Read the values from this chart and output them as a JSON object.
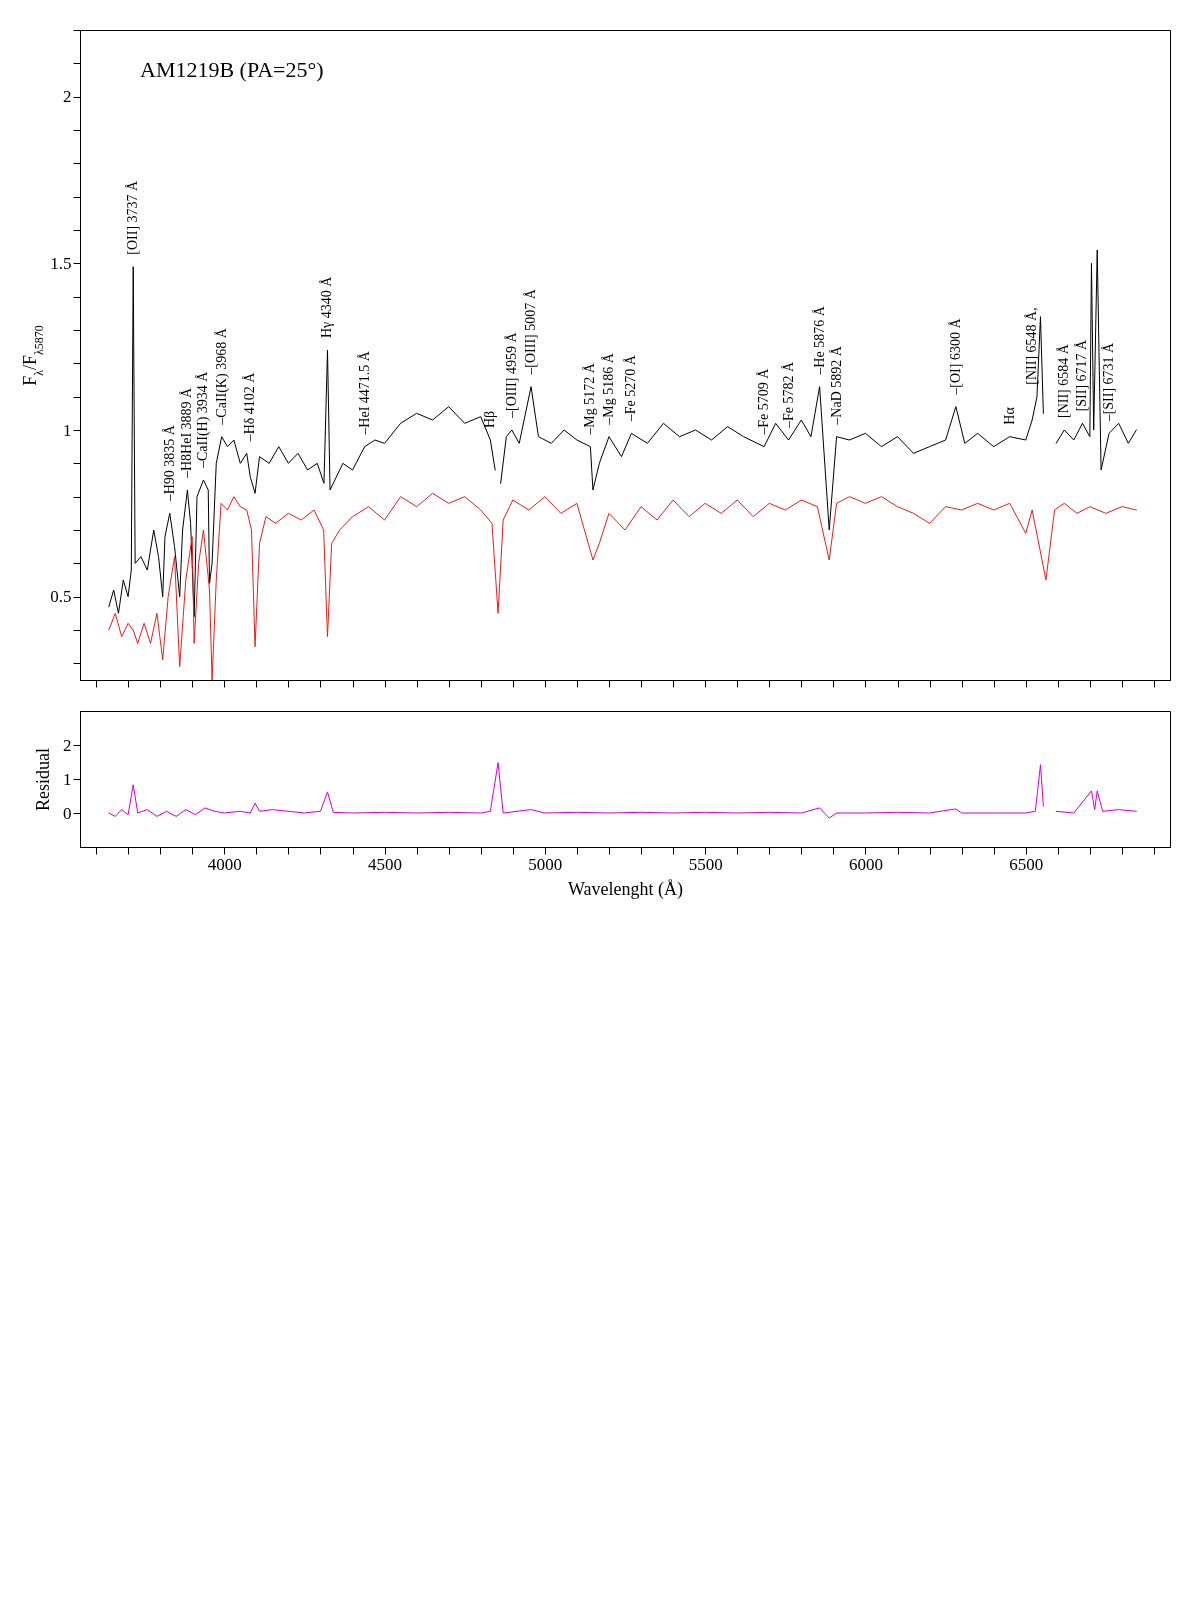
{
  "chart_data": [
    {
      "type": "line",
      "ylabel": "F$_{λ}$/F$_{λ5870}$",
      "tick_labels": "y",
      "xlim": [
        3550,
        6950
      ],
      "xticks": [
        {
          "value": 3600,
          "label": null
        },
        {
          "value": 3700,
          "label": null
        },
        {
          "value": 3800,
          "label": null
        },
        {
          "value": 3900,
          "label": null
        },
        4000,
        {
          "value": 4100,
          "label": null
        },
        {
          "value": 4200,
          "label": null
        },
        {
          "value": 4300,
          "label": null
        },
        {
          "value": 4400,
          "label": null
        },
        4500,
        {
          "value": 4600,
          "label": null
        },
        {
          "value": 4700,
          "label": null
        },
        {
          "value": 4800,
          "label": null
        },
        {
          "value": 4900,
          "label": null
        },
        5000,
        {
          "value": 5100,
          "label": null
        },
        {
          "value": 5200,
          "label": null
        },
        {
          "value": 5300,
          "label": null
        },
        {
          "value": 5400,
          "label": null
        },
        5500,
        {
          "value": 5600,
          "label": null
        },
        {
          "value": 5700,
          "label": null
        },
        {
          "value": 5800,
          "label": null
        },
        {
          "value": 5900,
          "label": null
        },
        6000,
        {
          "value": 6100,
          "label": null
        },
        {
          "value": 6200,
          "label": null
        },
        {
          "value": 6300,
          "label": null
        },
        {
          "value": 6400,
          "label": null
        },
        6500,
        {
          "value": 6600,
          "label": null
        },
        {
          "value": 6700,
          "label": null
        },
        {
          "value": 6800,
          "label": null
        },
        {
          "value": 6900,
          "label": null
        }
      ],
      "ylim": [
        0.25,
        2.2
      ],
      "yticks": [
        {
          "value": 0.3,
          "label": null
        },
        {
          "value": 0.4,
          "label": null
        },
        0.5,
        {
          "value": 0.6,
          "label": null
        },
        {
          "value": 0.7,
          "label": null
        },
        {
          "value": 0.8,
          "label": null
        },
        {
          "value": 0.9,
          "label": null
        },
        1,
        {
          "value": 1.1,
          "label": null
        },
        {
          "value": 1.2,
          "label": null
        },
        {
          "value": 1.3,
          "label": null
        },
        {
          "value": 1.4,
          "label": null
        },
        1.5,
        {
          "value": 1.6,
          "label": null
        },
        {
          "value": 1.7,
          "label": null
        },
        {
          "value": 1.8,
          "label": null
        },
        {
          "value": 1.9,
          "label": null
        },
        2,
        {
          "value": 2.1,
          "label": null
        },
        {
          "value": 2.2,
          "label": null
        }
      ],
      "series": [
        {
          "color": "#000000",
          "x": [
            3640,
            3655,
            3670,
            3685,
            3700,
            3710,
            3716,
            3722,
            3740,
            3760,
            3780,
            3795,
            3808,
            3815,
            3830,
            3845,
            3861,
            3870,
            3885,
            3895,
            3906,
            3915,
            3935,
            3950,
            3954,
            3962,
            3975,
            3992,
            4010,
            4030,
            4050,
            4070,
            4081,
            4096,
            4110,
            4140,
            4170,
            4200,
            4230,
            4260,
            4290,
            4311,
            4322,
            4330,
            4345,
            4370,
            4400,
            4438,
            4470,
            4500,
            4550,
            4600,
            4650,
            4700,
            4750,
            4800,
            4830,
            4845,
            4854,
            4862,
            4880,
            4897,
            4920,
            4957,
            4980,
            5020,
            5060,
            5100,
            5142,
            5150,
            5170,
            5200,
            5239,
            5270,
            5320,
            5370,
            5420,
            5470,
            5520,
            5570,
            5620,
            5684,
            5720,
            5760,
            5800,
            5830,
            5857,
            5887,
            5910,
            5950,
            6000,
            6050,
            6100,
            6150,
            6200,
            6250,
            6282,
            6310,
            6350,
            6400,
            6450,
            6500,
            6520,
            6535,
            6546,
            6555,
            6563,
            6572,
            6581,
            6595,
            6620,
            6650,
            6677,
            6700,
            6705,
            6712,
            6723,
            6735,
            6760,
            6790,
            6820,
            6845
          ],
          "values": [
            0.47,
            0.52,
            0.45,
            0.55,
            0.5,
            0.58,
            1.49,
            0.6,
            0.62,
            0.58,
            0.7,
            0.62,
            0.5,
            0.68,
            0.75,
            0.65,
            0.5,
            0.7,
            0.82,
            0.72,
            0.44,
            0.8,
            0.85,
            0.82,
            0.54,
            0.6,
            0.9,
            0.98,
            0.95,
            0.97,
            0.9,
            0.93,
            0.86,
            0.81,
            0.92,
            0.9,
            0.95,
            0.9,
            0.93,
            0.88,
            0.9,
            0.84,
            1.24,
            0.82,
            0.85,
            0.9,
            0.88,
            0.95,
            0.97,
            0.96,
            1.02,
            1.05,
            1.03,
            1.07,
            1.02,
            1.04,
            0.97,
            0.88,
            null,
            0.84,
            0.98,
            1,
            0.96,
            1.13,
            0.98,
            0.96,
            1,
            0.97,
            0.95,
            0.82,
            0.9,
            0.98,
            0.92,
            0.99,
            0.96,
            1.02,
            0.98,
            1,
            0.97,
            1.01,
            0.98,
            0.95,
            1.02,
            0.97,
            1.03,
            0.98,
            1.13,
            0.7,
            0.98,
            0.97,
            0.99,
            0.95,
            0.98,
            0.93,
            0.95,
            0.97,
            1.07,
            0.96,
            0.99,
            0.95,
            0.98,
            0.97,
            1.03,
            1.1,
            1.34,
            1.05,
            null,
            null,
            null,
            0.96,
            1,
            0.97,
            1.02,
            0.98,
            1.5,
            1,
            1.54,
            0.88,
            0.99,
            1.02,
            0.96,
            1
          ]
        },
        {
          "color": "#e02020",
          "x": [
            3640,
            3660,
            3680,
            3700,
            3716,
            3730,
            3750,
            3770,
            3790,
            3808,
            3825,
            3845,
            3861,
            3880,
            3900,
            3906,
            3920,
            3935,
            3954,
            3962,
            3975,
            3990,
            4010,
            4030,
            4050,
            4070,
            4085,
            4096,
            4110,
            4130,
            4160,
            4200,
            4240,
            4280,
            4310,
            4322,
            4335,
            4360,
            4400,
            4450,
            4500,
            4550,
            4600,
            4650,
            4700,
            4750,
            4800,
            4835,
            4854,
            4870,
            4900,
            4950,
            5000,
            5050,
            5100,
            5150,
            5170,
            5200,
            5250,
            5300,
            5350,
            5400,
            5450,
            5500,
            5550,
            5600,
            5650,
            5700,
            5750,
            5800,
            5850,
            5887,
            5910,
            5950,
            6000,
            6050,
            6100,
            6150,
            6200,
            6250,
            6300,
            6350,
            6400,
            6450,
            6500,
            6520,
            6563,
            6590,
            6620,
            6660,
            6700,
            6750,
            6800,
            6845
          ],
          "values": [
            0.4,
            0.45,
            0.38,
            0.42,
            0.4,
            0.36,
            0.42,
            0.36,
            0.45,
            0.31,
            0.5,
            0.62,
            0.29,
            0.55,
            0.68,
            0.36,
            0.6,
            0.7,
            0.52,
            0.25,
            0.55,
            0.78,
            0.76,
            0.8,
            0.77,
            0.76,
            0.7,
            0.35,
            0.66,
            0.74,
            0.72,
            0.75,
            0.73,
            0.76,
            0.7,
            0.38,
            0.66,
            0.7,
            0.74,
            0.77,
            0.73,
            0.8,
            0.77,
            0.81,
            0.78,
            0.8,
            0.76,
            0.72,
            0.45,
            0.73,
            0.79,
            0.76,
            0.8,
            0.75,
            0.78,
            0.61,
            0.66,
            0.75,
            0.7,
            0.77,
            0.73,
            0.79,
            0.74,
            0.78,
            0.75,
            0.79,
            0.74,
            0.78,
            0.76,
            0.79,
            0.77,
            0.61,
            0.78,
            0.8,
            0.78,
            0.8,
            0.77,
            0.75,
            0.72,
            0.77,
            0.76,
            0.78,
            0.76,
            0.78,
            0.69,
            0.76,
            0.55,
            0.76,
            0.78,
            0.75,
            0.77,
            0.75,
            0.77,
            0.76
          ]
        }
      ],
      "annotations": [
        "AM1219B  (PA=25°)",
        {
          "text": "[OII] 3737 Å",
          "x": 3716,
          "y": 1.49
        },
        {
          "text": "–H90 3835 Å",
          "x": 3830,
          "y": 0.75
        },
        {
          "text": "–H8HeI 3889 Å",
          "x": 3885,
          "y": 0.82
        },
        {
          "text": "–CaII(H) 3934 Å",
          "x": 3935,
          "y": 0.85
        },
        {
          "text": "–CaII(K) 3968 Å",
          "x": 3992,
          "y": 0.98
        },
        {
          "text": "–Hδ 4102 Å",
          "x": 4081,
          "y": 0.86
        },
        {
          "text": "Hγ 4340 Å",
          "x": 4322,
          "y": 1.24
        },
        {
          "text": "–HeI 4471.5 Å",
          "x": 4438,
          "y": 0.95
        },
        {
          "text": "Hβ",
          "x": 4830,
          "y": 0.97
        },
        {
          "text": "–[OIII] 4959 Å",
          "x": 4897,
          "y": 1
        },
        {
          "text": "–[OIII] 5007 Å",
          "x": 4957,
          "y": 1.13
        },
        {
          "text": "–Mg 5172 Å",
          "x": 5142,
          "y": 0.95
        },
        {
          "text": "–Mg 5186 Å",
          "x": 5200,
          "y": 0.98
        },
        {
          "text": "–Fe 5270 Å",
          "x": 5270,
          "y": 0.99
        },
        {
          "text": "–Fe 5709 Å",
          "x": 5684,
          "y": 0.95
        },
        {
          "text": "–Fe 5782 Å",
          "x": 5760,
          "y": 0.97
        },
        {
          "text": "–He 5876 Å",
          "x": 5857,
          "y": 1.13
        },
        {
          "text": "–NaD 5892 Å",
          "x": 5910,
          "y": 0.98
        },
        {
          "text": "–[OI] 6300 Å",
          "x": 6282,
          "y": 1.07
        },
        {
          "text": "Hα",
          "x": 6450,
          "y": 0.98
        },
        {
          "text": "[NII] 6548 Å,",
          "x": 6520,
          "y": 1.03
        },
        {
          "text": "[NII] 6584 Å",
          "x": 6620,
          "y": 1
        },
        {
          "text": "[SII] 6717 Å",
          "x": 6677,
          "y": 1.02
        },
        {
          "text": "–[SII] 6731 Å",
          "x": 6760,
          "y": 0.99
        }
      ]
    },
    {
      "type": "line",
      "xlabel": "Wavelenght (Å)",
      "ylabel": "Residual",
      "xlim": [
        3550,
        6950
      ],
      "xticks": [
        {
          "value": 3600,
          "label": null
        },
        {
          "value": 3700,
          "label": null
        },
        {
          "value": 3800,
          "label": null
        },
        {
          "value": 3900,
          "label": null
        },
        4000,
        {
          "value": 4100,
          "label": null
        },
        {
          "value": 4200,
          "label": null
        },
        {
          "value": 4300,
          "label": null
        },
        {
          "value": 4400,
          "label": null
        },
        4500,
        {
          "value": 4600,
          "label": null
        },
        {
          "value": 4700,
          "label": null
        },
        {
          "value": 4800,
          "label": null
        },
        {
          "value": 4900,
          "label": null
        },
        5000,
        {
          "value": 5100,
          "label": null
        },
        {
          "value": 5200,
          "label": null
        },
        {
          "value": 5300,
          "label": null
        },
        {
          "value": 5400,
          "label": null
        },
        5500,
        {
          "value": 5600,
          "label": null
        },
        {
          "value": 5700,
          "label": null
        },
        {
          "value": 5800,
          "label": null
        },
        {
          "value": 5900,
          "label": null
        },
        6000,
        {
          "value": 6100,
          "label": null
        },
        {
          "value": 6200,
          "label": null
        },
        {
          "value": 6300,
          "label": null
        },
        {
          "value": 6400,
          "label": null
        },
        6500,
        {
          "value": 6600,
          "label": null
        },
        {
          "value": 6700,
          "label": null
        },
        {
          "value": 6800,
          "label": null
        },
        {
          "value": 6900,
          "label": null
        }
      ],
      "ylim": [
        -1,
        3
      ],
      "yticks": [
        0,
        1,
        2
      ],
      "series": [
        {
          "color": "#d000d0",
          "x": [
            3640,
            3660,
            3680,
            3700,
            3716,
            3730,
            3760,
            3790,
            3820,
            3850,
            3880,
            3910,
            3940,
            3970,
            4000,
            4050,
            4081,
            4096,
            4110,
            4150,
            4200,
            4250,
            4300,
            4322,
            4340,
            4400,
            4500,
            4600,
            4700,
            4800,
            4830,
            4854,
            4870,
            4957,
            5000,
            5100,
            5200,
            5300,
            5400,
            5500,
            5600,
            5700,
            5800,
            5857,
            5887,
            5910,
            6000,
            6100,
            6200,
            6282,
            6300,
            6400,
            6500,
            6530,
            6546,
            6555,
            6563,
            6572,
            6581,
            6595,
            6650,
            6705,
            6715,
            6723,
            6740,
            6790,
            6845
          ],
          "values": [
            0,
            -0.1,
            0.1,
            -0.05,
            0.83,
            0,
            0.1,
            -0.1,
            0.05,
            -0.1,
            0.1,
            -0.05,
            0.15,
            0.05,
            0,
            0.05,
            0,
            0.29,
            0.05,
            0.1,
            0.05,
            0,
            0.05,
            0.62,
            0.02,
            0,
            0.02,
            0,
            0.02,
            0,
            0.05,
            1.48,
            0,
            0.1,
            0,
            0.02,
            0,
            0.02,
            0,
            0.02,
            0,
            0.02,
            0,
            0.15,
            -0.15,
            0,
            0,
            0.02,
            0,
            0.12,
            0,
            0,
            0,
            0.05,
            1.42,
            0.2,
            null,
            null,
            null,
            0.05,
            0,
            0.65,
            0.1,
            0.65,
            0.05,
            0.1,
            0.05
          ]
        }
      ]
    }
  ]
}
